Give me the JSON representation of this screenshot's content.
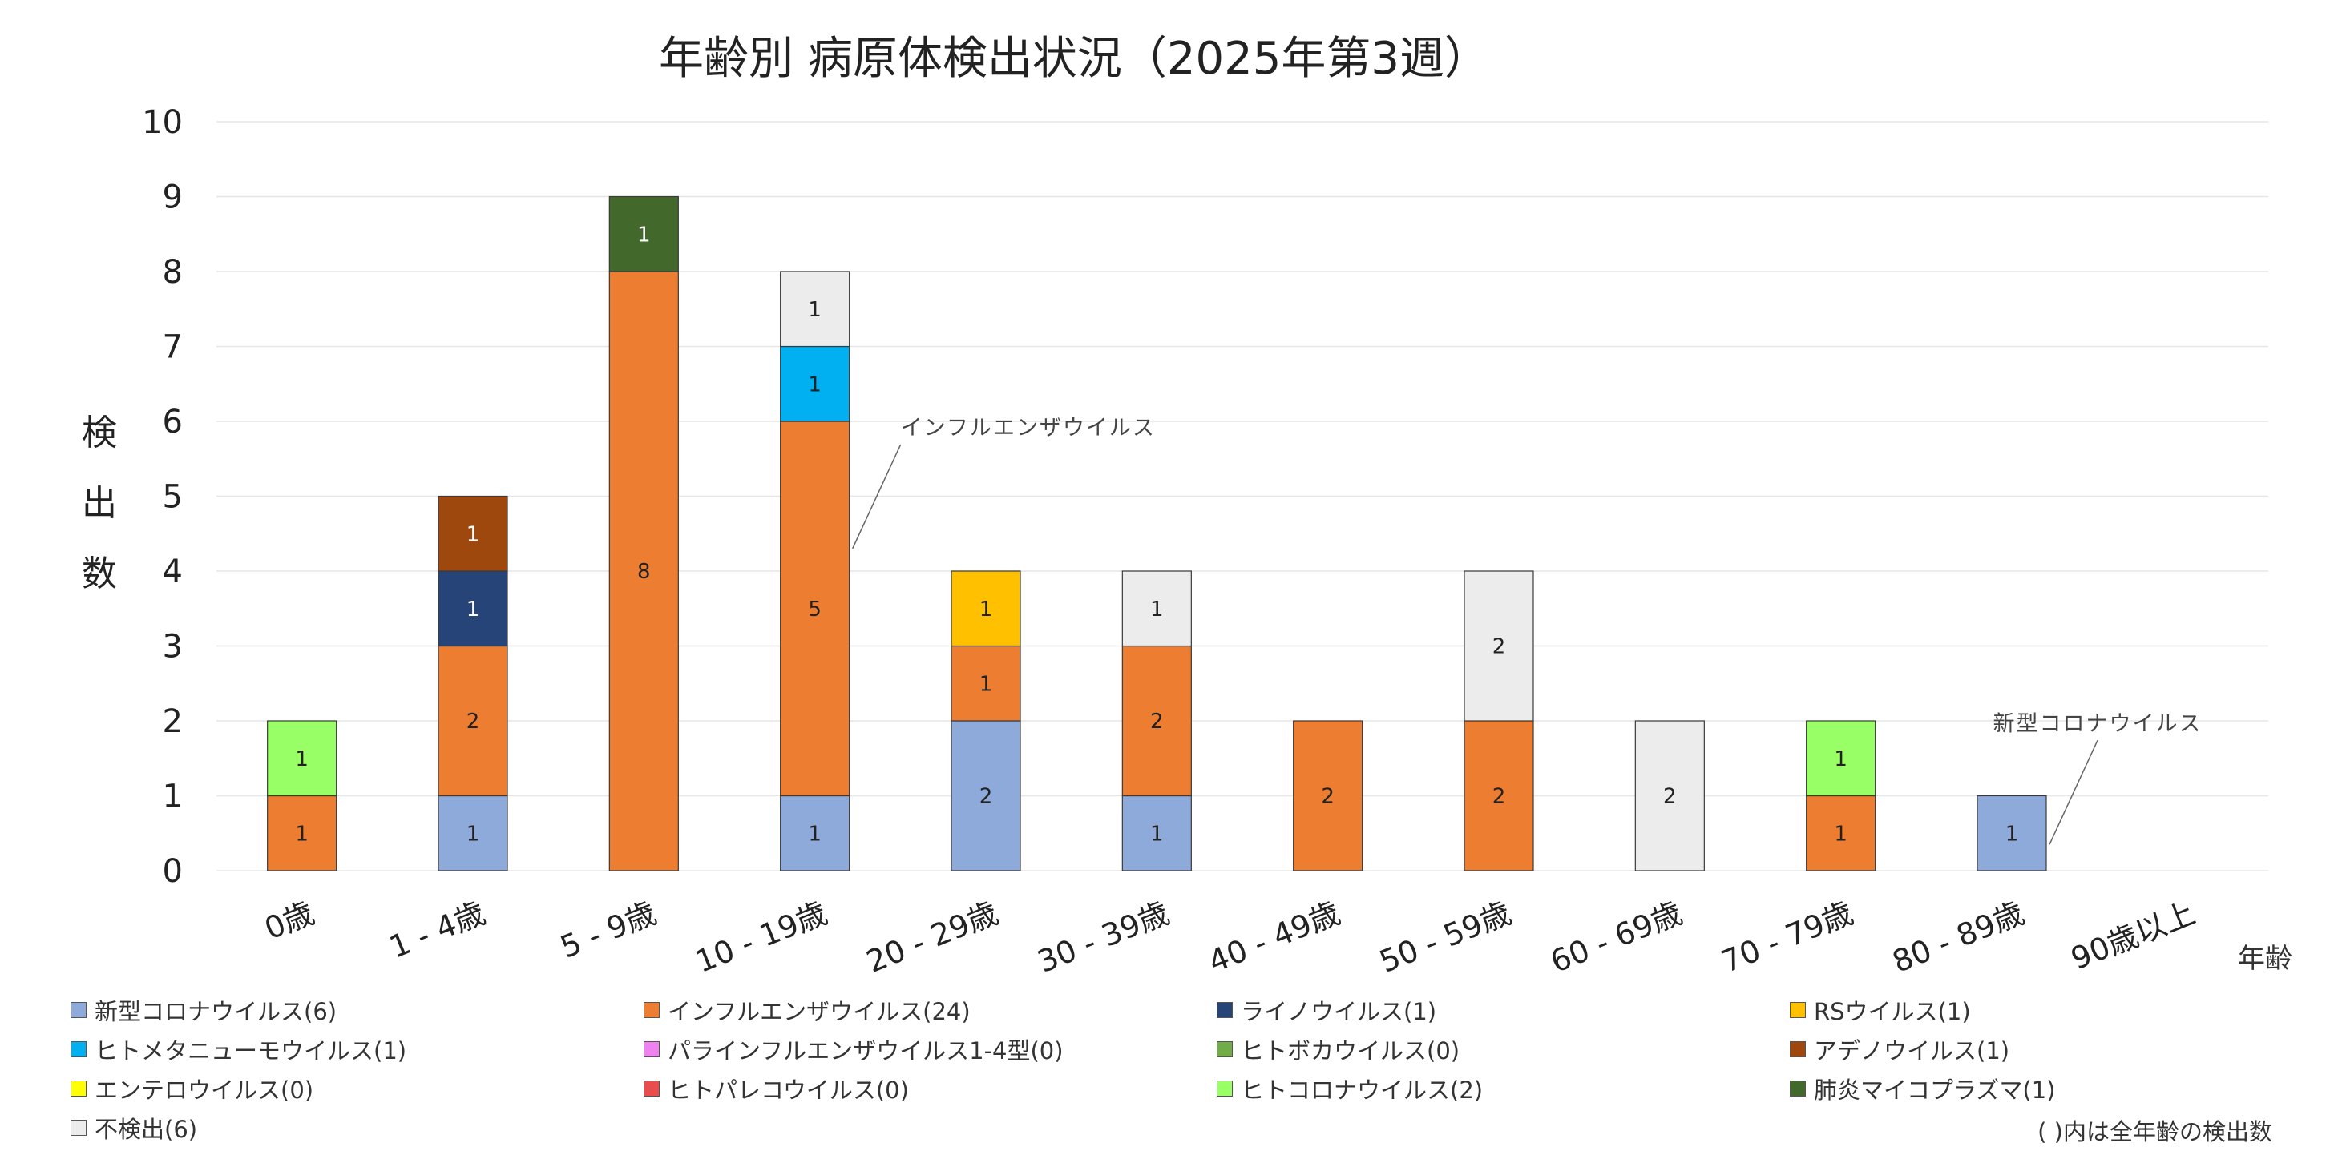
{
  "chart_data": {
    "type": "bar",
    "stacked": true,
    "title": "年齢別 病原体検出状況（2025年第3週）",
    "ylabel": "検出数",
    "xlabel": "年齢",
    "ylim": [
      0,
      10
    ],
    "yticks": [
      "0",
      "1",
      "2",
      "3",
      "4",
      "5",
      "6",
      "7",
      "8",
      "9",
      "10"
    ],
    "grid": true,
    "categories": [
      "0歳",
      "1 - 4歳",
      "5 - 9歳",
      "10 - 19歳",
      "20 - 29歳",
      "30 - 39歳",
      "40 - 49歳",
      "50 - 59歳",
      "60 - 69歳",
      "70 - 79歳",
      "80 - 89歳",
      "90歳以上"
    ],
    "series": [
      {
        "name": "新型コロナウイルス",
        "total": "(6)",
        "color": "#8eaadb",
        "values": [
          0,
          1,
          0,
          1,
          2,
          1,
          0,
          0,
          0,
          0,
          1,
          0
        ]
      },
      {
        "name": "インフルエンザウイルス",
        "total": "(24)",
        "color": "#ed7d31",
        "values": [
          1,
          2,
          8,
          5,
          1,
          2,
          2,
          2,
          0,
          1,
          0,
          0
        ]
      },
      {
        "name": "ライノウイルス",
        "total": "(1)",
        "color": "#264478",
        "values": [
          0,
          1,
          0,
          0,
          0,
          0,
          0,
          0,
          0,
          0,
          0,
          0
        ]
      },
      {
        "name": "RSウイルス",
        "total": "(1)",
        "color": "#ffc000",
        "values": [
          0,
          0,
          0,
          0,
          1,
          0,
          0,
          0,
          0,
          0,
          0,
          0
        ]
      },
      {
        "name": "ヒトメタニューモウイルス",
        "total": "(1)",
        "color": "#00b0f0",
        "values": [
          0,
          0,
          0,
          1,
          0,
          0,
          0,
          0,
          0,
          0,
          0,
          0
        ]
      },
      {
        "name": "パラインフルエンザウイルス1-4型",
        "total": "(0)",
        "color": "#ee82ee",
        "values": [
          0,
          0,
          0,
          0,
          0,
          0,
          0,
          0,
          0,
          0,
          0,
          0
        ]
      },
      {
        "name": "ヒトボカウイルス",
        "total": "(0)",
        "color": "#70ad47",
        "values": [
          0,
          0,
          0,
          0,
          0,
          0,
          0,
          0,
          0,
          0,
          0,
          0
        ]
      },
      {
        "name": "アデノウイルス",
        "total": "(1)",
        "color": "#9e480e",
        "values": [
          0,
          1,
          0,
          0,
          0,
          0,
          0,
          0,
          0,
          0,
          0,
          0
        ]
      },
      {
        "name": "エンテロウイルス",
        "total": "(0)",
        "color": "#ffff00",
        "values": [
          0,
          0,
          0,
          0,
          0,
          0,
          0,
          0,
          0,
          0,
          0,
          0
        ]
      },
      {
        "name": "ヒトパレコウイルス",
        "total": "(0)",
        "color": "#e84c4c",
        "values": [
          0,
          0,
          0,
          0,
          0,
          0,
          0,
          0,
          0,
          0,
          0,
          0
        ]
      },
      {
        "name": "ヒトコロナウイルス",
        "total": "(2)",
        "color": "#99ff66",
        "values": [
          1,
          0,
          0,
          0,
          0,
          0,
          0,
          0,
          0,
          1,
          0,
          0
        ]
      },
      {
        "name": "肺炎マイコプラズマ",
        "total": "(1)",
        "color": "#43682b",
        "values": [
          0,
          0,
          1,
          0,
          0,
          0,
          0,
          0,
          0,
          0,
          0,
          0
        ]
      },
      {
        "name": "不検出",
        "total": "(6)",
        "color": "#ececec",
        "values": [
          0,
          0,
          0,
          1,
          0,
          1,
          0,
          2,
          2,
          0,
          0,
          0
        ]
      }
    ],
    "annotations": [
      {
        "text": "インフルエンザウイルス",
        "category_index": 3,
        "value": 4.3
      },
      {
        "text": "新型コロナウイルス",
        "category_index": 10,
        "value": 0.35
      }
    ],
    "footnote": "( )内は全年齢の検出数"
  }
}
